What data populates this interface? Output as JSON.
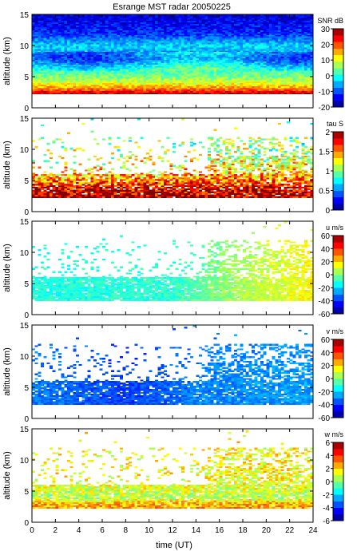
{
  "figure": {
    "title": "Esrange MST radar 20050225",
    "xlabel": "time (UT)"
  },
  "chart_data": [
    {
      "type": "heatmap",
      "id": "snr",
      "ylabel": "altitude (km)",
      "xlim": [
        0,
        24
      ],
      "ylim": [
        0,
        15
      ],
      "yticks": [
        0,
        5,
        10,
        15
      ],
      "colorbar": {
        "label": "SNR dB",
        "range": [
          -20,
          30
        ],
        "ticks": [
          -20,
          -10,
          0,
          10,
          20,
          30
        ]
      },
      "profile": [
        {
          "alt": 2.5,
          "value": 26
        },
        {
          "alt": 3,
          "value": 18
        },
        {
          "alt": 4,
          "value": 10
        },
        {
          "alt": 5,
          "value": 5
        },
        {
          "alt": 6,
          "value": 2
        },
        {
          "alt": 8,
          "value": -8
        },
        {
          "alt": 10,
          "value": -3
        },
        {
          "alt": 12,
          "value": -12
        },
        {
          "alt": 15,
          "value": -16
        }
      ]
    },
    {
      "type": "heatmap",
      "id": "tau",
      "ylabel": "altitude (km)",
      "xlim": [
        0,
        24
      ],
      "ylim": [
        0,
        15
      ],
      "yticks": [
        0,
        5,
        10,
        15
      ],
      "colorbar": {
        "label": "tau S",
        "range": [
          0,
          2
        ],
        "ticks": [
          0,
          0.5,
          1,
          1.5,
          2
        ]
      },
      "profile": [
        {
          "alt": 3,
          "value": 1.9
        },
        {
          "alt": 4,
          "value": 1.8
        },
        {
          "alt": 5,
          "value": 1.5
        },
        {
          "alt": 6,
          "value": 1.4
        },
        {
          "alt": 8,
          "value": 1.2
        },
        {
          "alt": 11,
          "value": 1.0
        }
      ]
    },
    {
      "type": "heatmap",
      "id": "u",
      "ylabel": "altitude (km)",
      "xlim": [
        0,
        24
      ],
      "ylim": [
        0,
        15
      ],
      "yticks": [
        0,
        5,
        10,
        15
      ],
      "colorbar": {
        "label": "u m/s",
        "range": [
          -60,
          60
        ],
        "ticks": [
          -60,
          -40,
          -20,
          0,
          20,
          40,
          60
        ]
      },
      "trend": [
        {
          "time": 0,
          "value": -12
        },
        {
          "time": 12,
          "value": -10
        },
        {
          "time": 18,
          "value": 5
        },
        {
          "time": 24,
          "value": 15
        }
      ]
    },
    {
      "type": "heatmap",
      "id": "v",
      "ylabel": "altitude (km)",
      "xlim": [
        0,
        24
      ],
      "ylim": [
        0,
        15
      ],
      "yticks": [
        0,
        5,
        10,
        15
      ],
      "colorbar": {
        "label": "v m/s",
        "range": [
          -60,
          60
        ],
        "ticks": [
          -60,
          -40,
          -20,
          0,
          20,
          40,
          60
        ]
      },
      "trend": [
        {
          "time": 0,
          "value": -30
        },
        {
          "time": 8,
          "value": -38
        },
        {
          "time": 14,
          "value": -30
        },
        {
          "time": 24,
          "value": -26
        }
      ]
    },
    {
      "type": "heatmap",
      "id": "w",
      "ylabel": "altitude (km)",
      "xlim": [
        0,
        24
      ],
      "ylim": [
        0,
        15
      ],
      "yticks": [
        0,
        5,
        10,
        15
      ],
      "xticks": [
        0,
        2,
        4,
        6,
        8,
        10,
        12,
        14,
        16,
        18,
        20,
        22,
        24
      ],
      "colorbar": {
        "label": "w m/s",
        "range": [
          -6,
          6
        ],
        "ticks": [
          -6,
          -4,
          -2,
          0,
          2,
          4,
          6
        ]
      },
      "profile": [
        {
          "alt": 3,
          "value": 2.5
        },
        {
          "alt": 4,
          "value": 0.5
        },
        {
          "alt": 5,
          "value": 1.0
        },
        {
          "alt": 7,
          "value": 1.5
        },
        {
          "alt": 10,
          "value": 1.5
        }
      ]
    }
  ]
}
